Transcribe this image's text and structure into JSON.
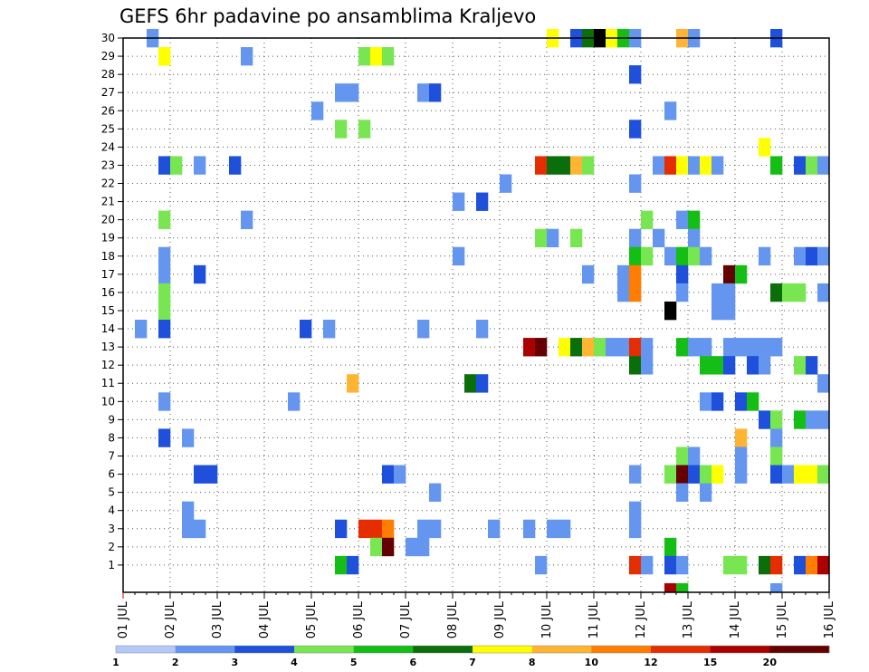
{
  "chart_data": {
    "type": "heatmap",
    "title": "GEFS 6hr padavine po ansamblima Kraljevo",
    "xlabel": "",
    "ylabel": "",
    "x_tick_labels": [
      "01 JUL",
      "02 JUL",
      "03 JUL",
      "04 JUL",
      "05 JUL",
      "06 JUL",
      "07 JUL",
      "08 JUL",
      "09 JUL",
      "10 JUL",
      "11 JUL",
      "12 JUL",
      "13 JUL",
      "14 JUL",
      "15 JUL",
      "16 JUL"
    ],
    "x_steps_per_day": 4,
    "x_range_steps": [
      0,
      60
    ],
    "y_members": [
      1,
      2,
      3,
      4,
      5,
      6,
      7,
      8,
      9,
      10,
      11,
      12,
      13,
      14,
      15,
      16,
      17,
      18,
      19,
      20,
      21,
      22,
      23,
      24,
      25,
      26,
      27,
      28,
      29,
      30
    ],
    "grid": "dotted",
    "legend": {
      "placement": "bottom",
      "colors": [
        "#b4c8fa",
        "#6496f0",
        "#1e50dc",
        "#78e650",
        "#14be14",
        "#0a6e0a",
        "#ffff00",
        "#ffb432",
        "#ff7d00",
        "#e62d00",
        "#aa0000",
        "#640000"
      ],
      "labels": [
        "1",
        "2",
        "3",
        "4",
        "5",
        "6",
        "7",
        "8",
        "10",
        "12",
        "15",
        "20"
      ]
    },
    "cells": [
      [
        2,
        30,
        1
      ],
      [
        36,
        30,
        6
      ],
      [
        38,
        30,
        2
      ],
      [
        39,
        30,
        5
      ],
      [
        40,
        30,
        12
      ],
      [
        41,
        30,
        6
      ],
      [
        42,
        30,
        4
      ],
      [
        43,
        30,
        1
      ],
      [
        47,
        30,
        7
      ],
      [
        48,
        30,
        1
      ],
      [
        55,
        30,
        2
      ],
      [
        3,
        29,
        6
      ],
      [
        10,
        29,
        1
      ],
      [
        20,
        29,
        3
      ],
      [
        21,
        29,
        6
      ],
      [
        22,
        29,
        3
      ],
      [
        43,
        28,
        2
      ],
      [
        18,
        27,
        1
      ],
      [
        19,
        27,
        1
      ],
      [
        25,
        27,
        1
      ],
      [
        26,
        27,
        2
      ],
      [
        16,
        26,
        1
      ],
      [
        46,
        26,
        1
      ],
      [
        18,
        25,
        3
      ],
      [
        20,
        25,
        3
      ],
      [
        43,
        25,
        2
      ],
      [
        54,
        24,
        6
      ],
      [
        3,
        23,
        2
      ],
      [
        4,
        23,
        3
      ],
      [
        6,
        23,
        1
      ],
      [
        9,
        23,
        2
      ],
      [
        35,
        23,
        9
      ],
      [
        36,
        23,
        5
      ],
      [
        37,
        23,
        5
      ],
      [
        38,
        23,
        7
      ],
      [
        39,
        23,
        3
      ],
      [
        45,
        23,
        1
      ],
      [
        46,
        23,
        9
      ],
      [
        47,
        23,
        6
      ],
      [
        48,
        23,
        1
      ],
      [
        49,
        23,
        6
      ],
      [
        50,
        23,
        1
      ],
      [
        55,
        23,
        4
      ],
      [
        57,
        23,
        2
      ],
      [
        58,
        23,
        3
      ],
      [
        59,
        23,
        1
      ],
      [
        32,
        22,
        1
      ],
      [
        43,
        22,
        1
      ],
      [
        28,
        21,
        1
      ],
      [
        30,
        21,
        2
      ],
      [
        3,
        20,
        3
      ],
      [
        10,
        20,
        1
      ],
      [
        44,
        20,
        3
      ],
      [
        47,
        20,
        1
      ],
      [
        48,
        20,
        4
      ],
      [
        35,
        19,
        3
      ],
      [
        36,
        19,
        1
      ],
      [
        38,
        19,
        3
      ],
      [
        43,
        19,
        1
      ],
      [
        45,
        19,
        1
      ],
      [
        48,
        19,
        1
      ],
      [
        3,
        18,
        1
      ],
      [
        28,
        18,
        1
      ],
      [
        43,
        18,
        4
      ],
      [
        44,
        18,
        3
      ],
      [
        46,
        18,
        1
      ],
      [
        47,
        18,
        4
      ],
      [
        48,
        18,
        3
      ],
      [
        49,
        18,
        1
      ],
      [
        54,
        18,
        1
      ],
      [
        57,
        18,
        1
      ],
      [
        58,
        18,
        2
      ],
      [
        59,
        18,
        1
      ],
      [
        3,
        17,
        1
      ],
      [
        6,
        17,
        2
      ],
      [
        39,
        17,
        1
      ],
      [
        42,
        17,
        1
      ],
      [
        43,
        17,
        8
      ],
      [
        47,
        17,
        2
      ],
      [
        51,
        17,
        11
      ],
      [
        52,
        17,
        4
      ],
      [
        3,
        16,
        3
      ],
      [
        42,
        16,
        1
      ],
      [
        43,
        16,
        8
      ],
      [
        47,
        16,
        1
      ],
      [
        50,
        16,
        1
      ],
      [
        51,
        16,
        1
      ],
      [
        55,
        16,
        5
      ],
      [
        56,
        16,
        3
      ],
      [
        57,
        16,
        3
      ],
      [
        59,
        16,
        1
      ],
      [
        3,
        15,
        3
      ],
      [
        46,
        15,
        12
      ],
      [
        50,
        15,
        1
      ],
      [
        51,
        15,
        1
      ],
      [
        1,
        14,
        1
      ],
      [
        3,
        14,
        2
      ],
      [
        15,
        14,
        2
      ],
      [
        17,
        14,
        1
      ],
      [
        25,
        14,
        1
      ],
      [
        30,
        14,
        1
      ],
      [
        34,
        13,
        10
      ],
      [
        35,
        13,
        11
      ],
      [
        37,
        13,
        6
      ],
      [
        38,
        13,
        5
      ],
      [
        39,
        13,
        7
      ],
      [
        40,
        13,
        3
      ],
      [
        41,
        13,
        1
      ],
      [
        42,
        13,
        1
      ],
      [
        43,
        13,
        9
      ],
      [
        44,
        13,
        1
      ],
      [
        47,
        13,
        4
      ],
      [
        48,
        13,
        1
      ],
      [
        49,
        13,
        1
      ],
      [
        51,
        13,
        1
      ],
      [
        52,
        13,
        1
      ],
      [
        53,
        13,
        1
      ],
      [
        54,
        13,
        1
      ],
      [
        55,
        13,
        1
      ],
      [
        43,
        12,
        5
      ],
      [
        44,
        12,
        1
      ],
      [
        49,
        12,
        4
      ],
      [
        50,
        12,
        4
      ],
      [
        51,
        12,
        2
      ],
      [
        53,
        12,
        2
      ],
      [
        54,
        12,
        1
      ],
      [
        57,
        12,
        3
      ],
      [
        58,
        12,
        2
      ],
      [
        19,
        11,
        7
      ],
      [
        29,
        11,
        5
      ],
      [
        30,
        11,
        2
      ],
      [
        59,
        11,
        1
      ],
      [
        3,
        10,
        1
      ],
      [
        14,
        10,
        1
      ],
      [
        49,
        10,
        1
      ],
      [
        50,
        10,
        2
      ],
      [
        52,
        10,
        2
      ],
      [
        53,
        10,
        4
      ],
      [
        54,
        9,
        2
      ],
      [
        55,
        9,
        3
      ],
      [
        57,
        9,
        4
      ],
      [
        58,
        9,
        1
      ],
      [
        59,
        9,
        1
      ],
      [
        3,
        8,
        2
      ],
      [
        5,
        8,
        1
      ],
      [
        52,
        8,
        7
      ],
      [
        55,
        8,
        1
      ],
      [
        47,
        7,
        3
      ],
      [
        48,
        7,
        1
      ],
      [
        52,
        7,
        1
      ],
      [
        55,
        7,
        3
      ],
      [
        6,
        6,
        2
      ],
      [
        7,
        6,
        2
      ],
      [
        22,
        6,
        2
      ],
      [
        23,
        6,
        1
      ],
      [
        43,
        6,
        1
      ],
      [
        46,
        6,
        3
      ],
      [
        47,
        6,
        11
      ],
      [
        48,
        6,
        2
      ],
      [
        49,
        6,
        3
      ],
      [
        50,
        6,
        6
      ],
      [
        52,
        6,
        1
      ],
      [
        55,
        6,
        2
      ],
      [
        56,
        6,
        1
      ],
      [
        57,
        6,
        6
      ],
      [
        58,
        6,
        6
      ],
      [
        59,
        6,
        3
      ],
      [
        26,
        5,
        1
      ],
      [
        47,
        5,
        1
      ],
      [
        49,
        5,
        1
      ],
      [
        5,
        4,
        1
      ],
      [
        43,
        4,
        1
      ],
      [
        5,
        3,
        1
      ],
      [
        6,
        3,
        1
      ],
      [
        18,
        3,
        2
      ],
      [
        20,
        3,
        9
      ],
      [
        21,
        3,
        9
      ],
      [
        22,
        3,
        8
      ],
      [
        25,
        3,
        1
      ],
      [
        26,
        3,
        1
      ],
      [
        31,
        3,
        1
      ],
      [
        34,
        3,
        1
      ],
      [
        36,
        3,
        1
      ],
      [
        37,
        3,
        1
      ],
      [
        43,
        3,
        1
      ],
      [
        21,
        2,
        3
      ],
      [
        22,
        2,
        11
      ],
      [
        24,
        2,
        1
      ],
      [
        25,
        2,
        1
      ],
      [
        46,
        2,
        4
      ],
      [
        18,
        1,
        4
      ],
      [
        19,
        1,
        2
      ],
      [
        35,
        1,
        1
      ],
      [
        43,
        1,
        9
      ],
      [
        44,
        1,
        1
      ],
      [
        46,
        1,
        2
      ],
      [
        47,
        1,
        1
      ],
      [
        51,
        1,
        3
      ],
      [
        52,
        1,
        3
      ],
      [
        54,
        1,
        5
      ],
      [
        55,
        1,
        9
      ],
      [
        57,
        1,
        2
      ],
      [
        58,
        1,
        8
      ],
      [
        59,
        1,
        10
      ],
      [
        46,
        0,
        10
      ],
      [
        47,
        0,
        4
      ],
      [
        55,
        0,
        1
      ]
    ]
  }
}
